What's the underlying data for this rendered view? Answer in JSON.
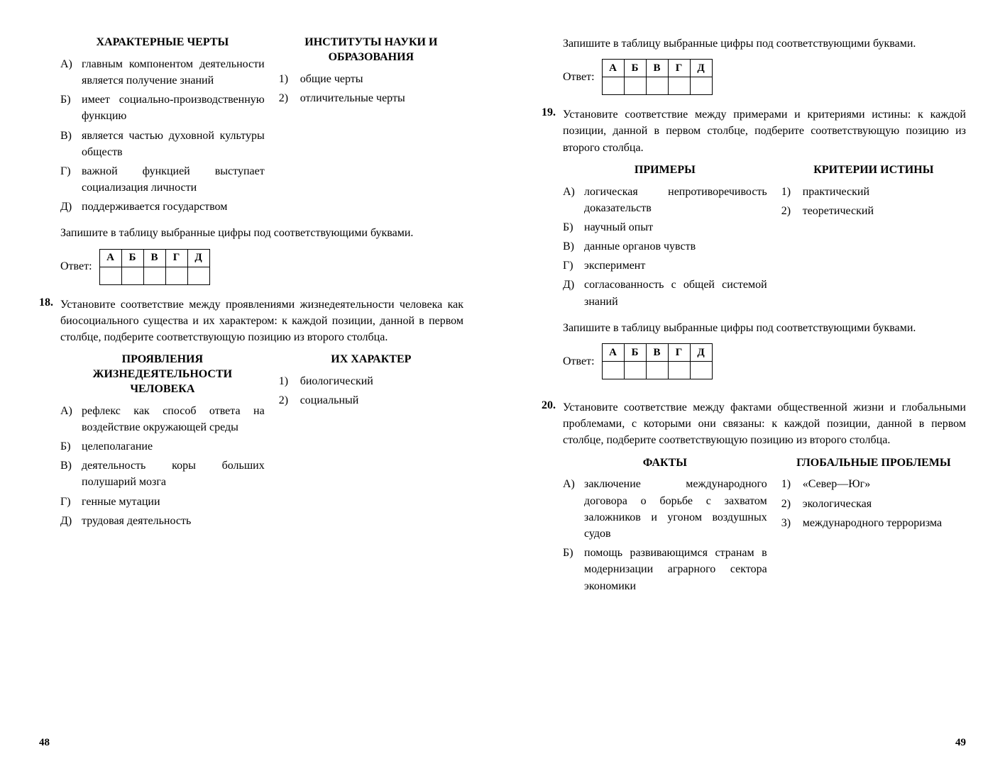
{
  "leftPage": {
    "pageNum": "48",
    "topHeadings": {
      "left": "ХАРАКТЕРНЫЕ ЧЕРТЫ",
      "right": "ИНСТИТУТЫ НАУКИ И ОБРАЗОВАНИЯ"
    },
    "topLeftItems": [
      {
        "m": "А)",
        "t": "главным компонентом деятельности является получение знаний"
      },
      {
        "m": "Б)",
        "t": "имеет социально-производственную функцию"
      },
      {
        "m": "В)",
        "t": "является частью духовной культуры обществ"
      },
      {
        "m": "Г)",
        "t": "важной функцией выступает социализация личности"
      },
      {
        "m": "Д)",
        "t": "поддерживается государством"
      }
    ],
    "topRightItems": [
      {
        "m": "1)",
        "t": "общие черты"
      },
      {
        "m": "2)",
        "t": "отличительные черты"
      }
    ],
    "instruction": "Запишите в таблицу выбранные цифры под соответствующими буквами.",
    "answerLabel": "Ответ:",
    "tableHeaders": [
      "А",
      "Б",
      "В",
      "Г",
      "Д"
    ],
    "q18": {
      "num": "18.",
      "text": "Установите соответствие между проявлениями жизнедеятельности человека как биосоциального существа и их характером: к каждой позиции, данной в первом столбце, подберите соответствующую позицию из второго столбца.",
      "leftHeading": "ПРОЯВЛЕНИЯ ЖИЗНЕДЕЯТЕЛЬНОСТИ ЧЕЛОВЕКА",
      "rightHeading": "ИХ ХАРАКТЕР",
      "leftItems": [
        {
          "m": "А)",
          "t": "рефлекс как способ ответа на воздействие окружающей среды"
        },
        {
          "m": "Б)",
          "t": "целеполагание"
        },
        {
          "m": "В)",
          "t": "деятельность коры больших полушарий мозга"
        },
        {
          "m": "Г)",
          "t": "генные мутации"
        },
        {
          "m": "Д)",
          "t": "трудовая деятельность"
        }
      ],
      "rightItems": [
        {
          "m": "1)",
          "t": "биологический"
        },
        {
          "m": "2)",
          "t": "социальный"
        }
      ]
    }
  },
  "rightPage": {
    "pageNum": "49",
    "instruction": "Запишите в таблицу выбранные цифры под соответствующими буквами.",
    "answerLabel": "Ответ:",
    "tableHeaders": [
      "А",
      "Б",
      "В",
      "Г",
      "Д"
    ],
    "q19": {
      "num": "19.",
      "text": "Установите соответствие между примерами и критериями истины: к каждой позиции, данной в первом столбце, подберите соответствующую позицию из второго столбца.",
      "leftHeading": "ПРИМЕРЫ",
      "rightHeading": "КРИТЕРИИ ИСТИНЫ",
      "leftItems": [
        {
          "m": "А)",
          "t": "логическая непротиворечивость доказательств"
        },
        {
          "m": "Б)",
          "t": "научный опыт"
        },
        {
          "m": "В)",
          "t": "данные органов чувств"
        },
        {
          "m": "Г)",
          "t": "эксперимент"
        },
        {
          "m": "Д)",
          "t": "согласованность с общей системой знаний"
        }
      ],
      "rightItems": [
        {
          "m": "1)",
          "t": "практический"
        },
        {
          "m": "2)",
          "t": "теоретический"
        }
      ]
    },
    "q20": {
      "num": "20.",
      "text": "Установите соответствие между фактами общественной жизни и глобальными проблемами, с которыми они связаны: к каждой позиции, данной в первом столбце, подберите соответствующую позицию из второго столбца.",
      "leftHeading": "ФАКТЫ",
      "rightHeading": "ГЛОБАЛЬНЫЕ ПРОБЛЕМЫ",
      "leftItems": [
        {
          "m": "А)",
          "t": "заключение международного договора о борьбе с захватом заложников и угоном воздушных судов"
        },
        {
          "m": "Б)",
          "t": "помощь развивающимся странам в модернизации аграрного сектора экономики"
        }
      ],
      "rightItems": [
        {
          "m": "1)",
          "t": "«Север—Юг»"
        },
        {
          "m": "2)",
          "t": "экологическая"
        },
        {
          "m": "3)",
          "t": "международного терроризма"
        }
      ]
    }
  }
}
